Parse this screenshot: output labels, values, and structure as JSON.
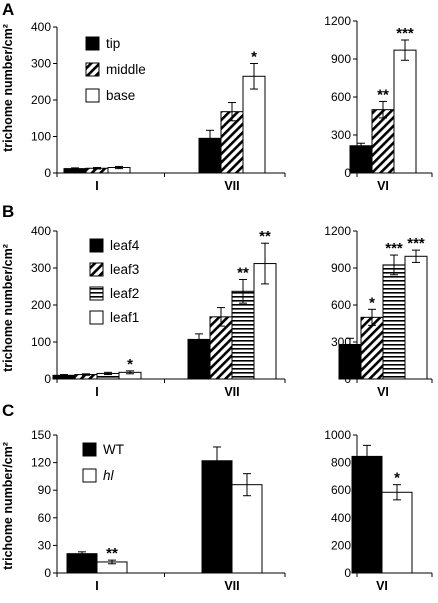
{
  "figure": {
    "panel_labels": [
      "A",
      "B",
      "C"
    ],
    "ylabel": "trichome number/cm²"
  },
  "chart_data": [
    {
      "id": "A-left",
      "panel": "A",
      "type": "bar",
      "categories": [
        "I",
        "VII"
      ],
      "series": [
        {
          "name": "tip",
          "fill": "black",
          "values": [
            12,
            95
          ],
          "errors": [
            2,
            22
          ],
          "sig": [
            "",
            ""
          ]
        },
        {
          "name": "middle",
          "fill": "hatch",
          "values": [
            13,
            168
          ],
          "errors": [
            2,
            25
          ],
          "sig": [
            "",
            ""
          ]
        },
        {
          "name": "base",
          "fill": "white",
          "values": [
            15,
            265
          ],
          "errors": [
            3,
            35
          ],
          "sig": [
            "",
            "*"
          ]
        }
      ],
      "ylim": [
        0,
        400
      ],
      "yticks": [
        0,
        100,
        200,
        300,
        400
      ],
      "ylabel": "trichome number/cm²",
      "legend": "top-left"
    },
    {
      "id": "A-right",
      "panel": "A",
      "type": "bar",
      "categories": [
        "VI"
      ],
      "series": [
        {
          "name": "tip",
          "fill": "black",
          "values": [
            215
          ],
          "errors": [
            20
          ],
          "sig": [
            ""
          ]
        },
        {
          "name": "middle",
          "fill": "hatch",
          "values": [
            500
          ],
          "errors": [
            65
          ],
          "sig": [
            "**"
          ]
        },
        {
          "name": "base",
          "fill": "white",
          "values": [
            970
          ],
          "errors": [
            80
          ],
          "sig": [
            "***"
          ]
        }
      ],
      "ylim": [
        0,
        1200
      ],
      "yticks": [
        0,
        300,
        600,
        900,
        1200
      ]
    },
    {
      "id": "B-left",
      "panel": "B",
      "type": "bar",
      "categories": [
        "I",
        "VII"
      ],
      "series": [
        {
          "name": "leaf4",
          "fill": "black",
          "values": [
            10,
            107
          ],
          "errors": [
            2,
            15
          ],
          "sig": [
            "",
            ""
          ]
        },
        {
          "name": "leaf3",
          "fill": "hatch",
          "values": [
            12,
            168
          ],
          "errors": [
            2,
            25
          ],
          "sig": [
            "",
            ""
          ]
        },
        {
          "name": "leaf2",
          "fill": "hstripe",
          "values": [
            15,
            237
          ],
          "errors": [
            3,
            32
          ],
          "sig": [
            "",
            "**"
          ]
        },
        {
          "name": "leaf1",
          "fill": "white",
          "values": [
            18,
            312
          ],
          "errors": [
            4,
            55
          ],
          "sig": [
            "*",
            "**"
          ]
        }
      ],
      "ylim": [
        0,
        400
      ],
      "yticks": [
        0,
        100,
        200,
        300,
        400
      ],
      "ylabel": "trichome number/cm²",
      "legend": "top-left"
    },
    {
      "id": "B-right",
      "panel": "B",
      "type": "bar",
      "categories": [
        "VI"
      ],
      "series": [
        {
          "name": "leaf4",
          "fill": "black",
          "values": [
            280
          ],
          "errors": [
            50
          ],
          "sig": [
            ""
          ]
        },
        {
          "name": "leaf3",
          "fill": "hatch",
          "values": [
            500
          ],
          "errors": [
            65
          ],
          "sig": [
            "*"
          ]
        },
        {
          "name": "leaf2",
          "fill": "hstripe",
          "values": [
            925
          ],
          "errors": [
            80
          ],
          "sig": [
            "***"
          ]
        },
        {
          "name": "leaf1",
          "fill": "white",
          "values": [
            995
          ],
          "errors": [
            50
          ],
          "sig": [
            "***"
          ]
        }
      ],
      "ylim": [
        0,
        1200
      ],
      "yticks": [
        0,
        300,
        600,
        900,
        1200
      ]
    },
    {
      "id": "C-left",
      "panel": "C",
      "type": "bar",
      "categories": [
        "I",
        "VII"
      ],
      "series": [
        {
          "name": "WT",
          "italic": false,
          "fill": "black",
          "values": [
            21,
            122
          ],
          "errors": [
            2,
            15
          ],
          "sig": [
            "",
            ""
          ]
        },
        {
          "name": "hl",
          "italic": true,
          "fill": "white",
          "values": [
            12,
            96
          ],
          "errors": [
            2,
            12
          ],
          "sig": [
            "**",
            ""
          ]
        }
      ],
      "ylim": [
        0,
        150
      ],
      "yticks": [
        0,
        30,
        60,
        90,
        120,
        150
      ],
      "ylabel": "trichome number/cm²",
      "legend": "top-left"
    },
    {
      "id": "C-right",
      "panel": "C",
      "type": "bar",
      "categories": [
        "VI"
      ],
      "series": [
        {
          "name": "WT",
          "fill": "black",
          "values": [
            845
          ],
          "errors": [
            80
          ],
          "sig": [
            ""
          ]
        },
        {
          "name": "hl",
          "fill": "white",
          "values": [
            585
          ],
          "errors": [
            55
          ],
          "sig": [
            "*"
          ]
        }
      ],
      "ylim": [
        0,
        1000
      ],
      "yticks": [
        0,
        200,
        400,
        600,
        800,
        1000
      ]
    }
  ]
}
